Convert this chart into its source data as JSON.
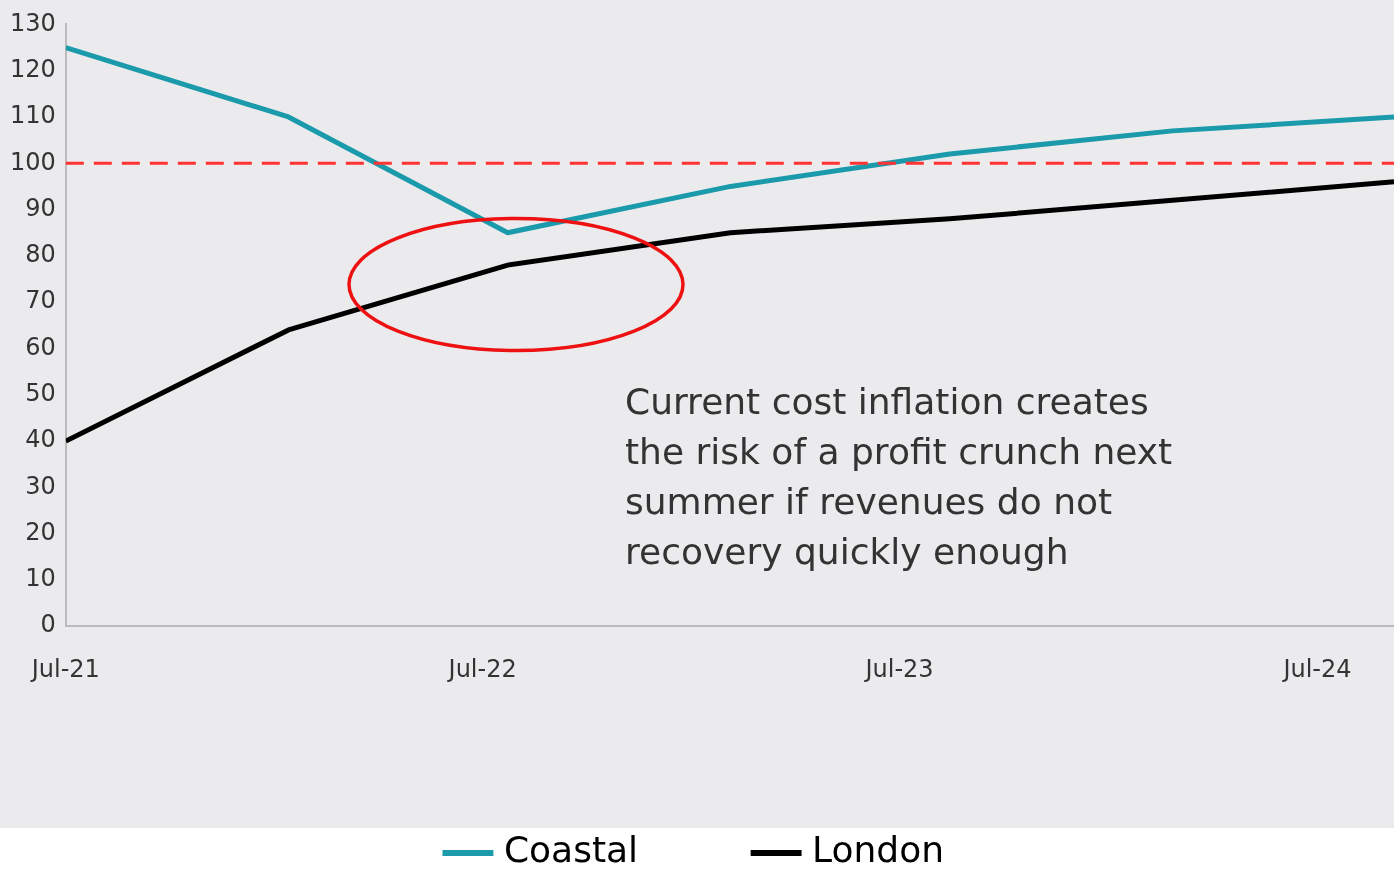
{
  "chart_data": {
    "type": "line",
    "x": [
      "2021-07-01",
      "2022-01-12",
      "2022-07-23",
      "2023-02-03",
      "2023-08-14",
      "2024-02-25",
      "2024-09-06"
    ],
    "series": [
      {
        "name": "Coastal",
        "color": "#1a9aaa",
        "values": [
          125,
          110,
          85,
          95,
          102,
          107,
          110
        ]
      },
      {
        "name": "London",
        "color": "#000000",
        "values": [
          40,
          64,
          78,
          85,
          88,
          92,
          96
        ]
      }
    ],
    "xlim": [
      "2021-07-01",
      "2024-09-06"
    ],
    "xticks": [
      {
        "value": "2021-07-01",
        "label": "Jul-21"
      },
      {
        "value": "2022-07-01",
        "label": "Jul-22"
      },
      {
        "value": "2023-07-01",
        "label": "Jul-23"
      },
      {
        "value": "2024-07-01",
        "label": "Jul-24"
      }
    ],
    "ylim": [
      0,
      130
    ],
    "yticks": [
      0,
      10,
      20,
      30,
      40,
      50,
      60,
      70,
      80,
      90,
      100,
      110,
      120,
      130
    ],
    "ref_lines": [
      {
        "axis": "y",
        "value": 100,
        "color": "#ff3333",
        "line_style": "dashed"
      }
    ],
    "annotations": [
      "Current cost inflation creates the risk of a profit crunch next summer if revenues do not recovery quickly enough"
    ],
    "grid": false,
    "legend": "bottom",
    "marker": "none",
    "line_style": "solid"
  }
}
